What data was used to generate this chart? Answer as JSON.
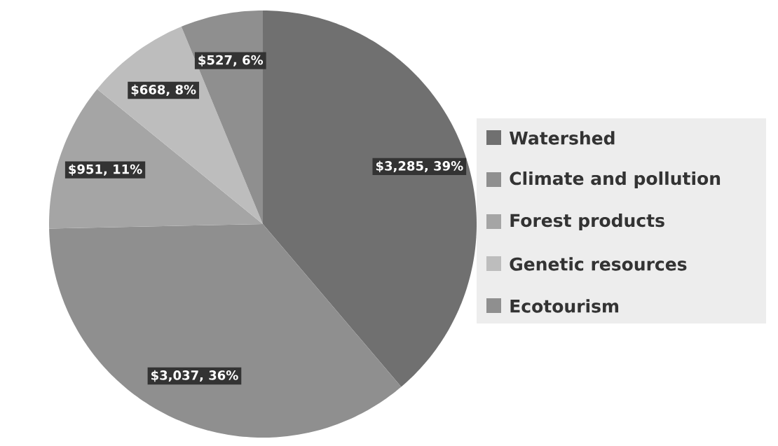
{
  "chart_data": {
    "type": "pie",
    "categories": [
      "Watershed",
      "Climate and pollution",
      "Forest products",
      "Genetic resources",
      "Ecotourism"
    ],
    "values": [
      3285,
      3037,
      951,
      668,
      527
    ],
    "colors": [
      "#707070",
      "#8f8f8f",
      "#a5a5a5",
      "#bdbdbd",
      "#8f8f8f"
    ],
    "value_labels": [
      "$3,285, 39%",
      "$3,037, 36%",
      "$951, 11%",
      "$668, 8%",
      "$527, 6%"
    ],
    "legend": "right"
  }
}
